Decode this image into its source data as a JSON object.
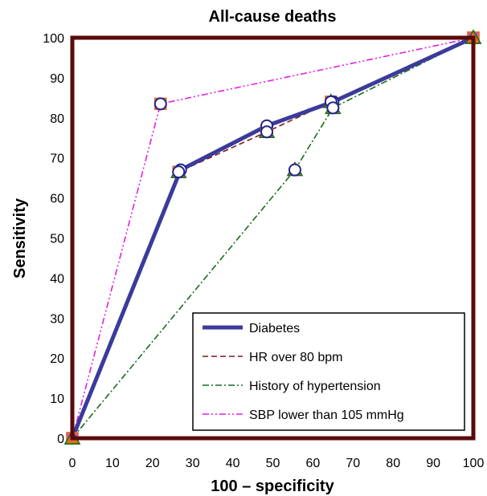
{
  "chart_data": {
    "type": "line",
    "title": "All-cause deaths",
    "xlabel": "100 – specificity",
    "ylabel": "Sensitivity",
    "xlim": [
      0,
      100
    ],
    "ylim": [
      0,
      100
    ],
    "xticks": [
      "0",
      "10",
      "20",
      "30",
      "40",
      "50",
      "60",
      "70",
      "80",
      "90",
      "100"
    ],
    "yticks": [
      "0",
      "10",
      "20",
      "30",
      "40",
      "50",
      "60",
      "70",
      "80",
      "90",
      "100"
    ],
    "grid": false,
    "legend_position": "bottom-right",
    "series": [
      {
        "name": "Diabetes",
        "color": "#3b3b9b",
        "style": "solid-thick",
        "x": [
          0,
          27,
          48.5,
          65,
          100
        ],
        "y": [
          0,
          67,
          78,
          84,
          100
        ]
      },
      {
        "name": "HR over 80 bpm",
        "color": "#7b1a1a",
        "style": "dashed",
        "x": [
          0,
          26.5,
          48.5,
          64.5,
          100
        ],
        "y": [
          0,
          66.5,
          76.5,
          84,
          100
        ]
      },
      {
        "name": "History of hypertension",
        "color": "#1a6b1a",
        "style": "dash-dot",
        "x": [
          0,
          55.5,
          65,
          100
        ],
        "y": [
          0,
          67,
          82.5,
          100
        ]
      },
      {
        "name": "SBP lower than 105 mmHg",
        "color": "#e020e0",
        "style": "dash-dot-dot",
        "x": [
          0,
          22,
          100
        ],
        "y": [
          0,
          83.5,
          100
        ]
      }
    ]
  }
}
